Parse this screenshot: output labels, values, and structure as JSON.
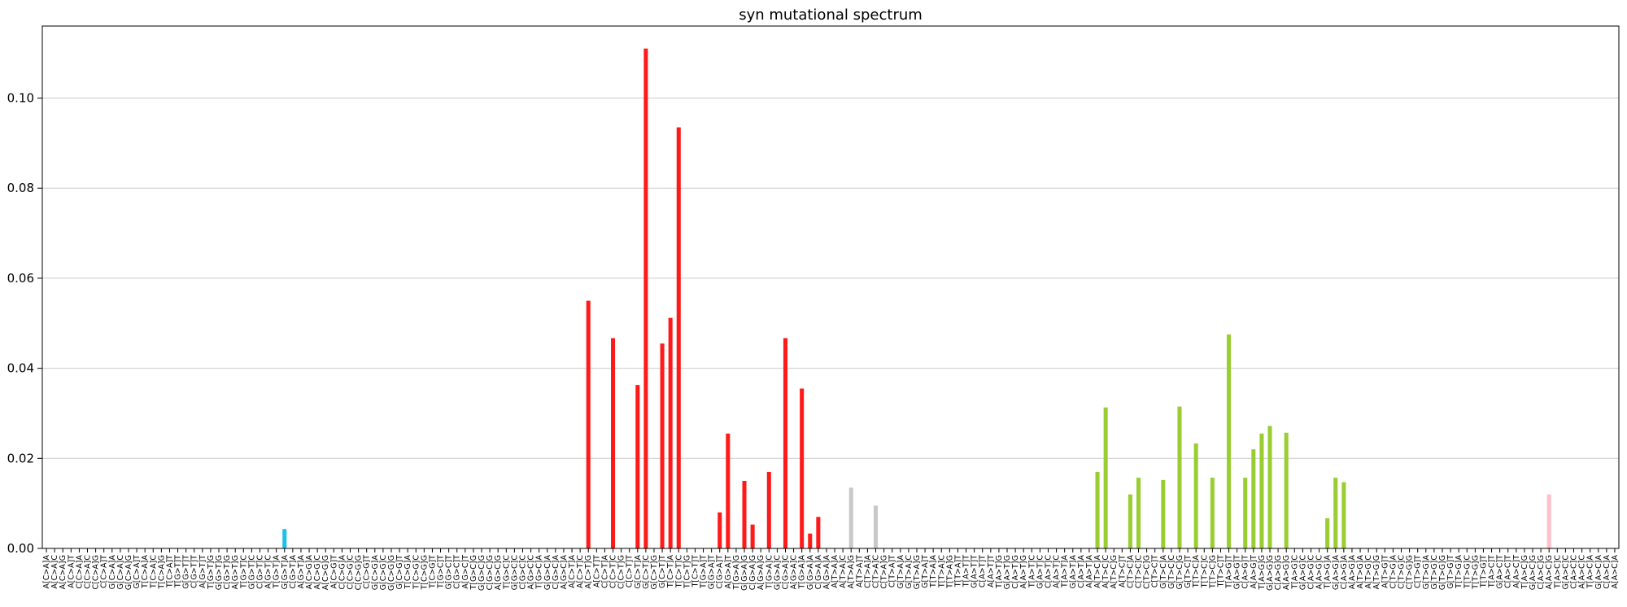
{
  "chart_data": {
    "type": "bar",
    "title": "syn mutational spectrum",
    "xlabel": "",
    "ylabel": "",
    "ylim": [
      0,
      0.116
    ],
    "yticks": [
      "0.00",
      "0.02",
      "0.04",
      "0.06",
      "0.08",
      "0.10"
    ],
    "grid": "horizontal",
    "categories": [
      "A[C>A]A",
      "A[C>A]C",
      "A[C>A]G",
      "A[C>A]T",
      "C[C>A]A",
      "C[C>A]C",
      "C[C>A]G",
      "C[C>A]T",
      "G[C>A]A",
      "G[C>A]C",
      "G[C>A]G",
      "G[C>A]T",
      "T[C>A]A",
      "T[C>A]C",
      "T[C>A]G",
      "T[C>A]T",
      "T[G>T]T",
      "G[G>T]T",
      "C[G>T]T",
      "A[G>T]T",
      "T[G>T]G",
      "G[G>T]G",
      "C[G>T]G",
      "A[G>T]G",
      "T[G>T]C",
      "G[G>T]C",
      "C[G>T]C",
      "A[G>T]C",
      "T[G>T]A",
      "G[G>T]A",
      "C[G>T]A",
      "A[G>T]A",
      "A[C>G]A",
      "A[C>G]C",
      "A[C>G]G",
      "A[C>G]T",
      "C[C>G]A",
      "C[C>G]C",
      "C[C>G]G",
      "C[C>G]T",
      "G[C>G]A",
      "G[C>G]C",
      "G[C>G]G",
      "G[C>G]T",
      "T[C>G]A",
      "T[C>G]C",
      "T[C>G]G",
      "T[C>G]T",
      "T[G>C]T",
      "G[G>C]T",
      "C[G>C]T",
      "A[G>C]T",
      "T[G>C]G",
      "G[G>C]G",
      "C[G>C]G",
      "A[G>C]G",
      "T[G>C]C",
      "G[G>C]C",
      "C[G>C]C",
      "A[G>C]C",
      "T[G>C]A",
      "G[G>C]A",
      "C[G>C]A",
      "A[G>C]A",
      "A[C>T]A",
      "A[C>T]C",
      "A[C>T]G",
      "A[C>T]T",
      "C[C>T]A",
      "C[C>T]C",
      "C[C>T]G",
      "C[C>T]T",
      "G[C>T]A",
      "G[C>T]C",
      "G[C>T]G",
      "G[C>T]T",
      "T[C>T]A",
      "T[C>T]C",
      "T[C>T]G",
      "T[C>T]T",
      "T[G>A]T",
      "G[G>A]T",
      "C[G>A]T",
      "A[G>A]T",
      "T[G>A]G",
      "G[G>A]G",
      "C[G>A]G",
      "A[G>A]G",
      "T[G>A]C",
      "G[G>A]C",
      "C[G>A]C",
      "A[G>A]C",
      "T[G>A]A",
      "G[G>A]A",
      "C[G>A]A",
      "A[G>A]A",
      "A[T>A]A",
      "A[T>A]C",
      "A[T>A]G",
      "A[T>A]T",
      "C[T>A]A",
      "C[T>A]C",
      "C[T>A]G",
      "C[T>A]T",
      "G[T>A]A",
      "G[T>A]C",
      "G[T>A]G",
      "G[T>A]T",
      "T[T>A]A",
      "T[T>A]C",
      "T[T>A]G",
      "T[T>A]T",
      "T[A>T]T",
      "G[A>T]T",
      "C[A>T]T",
      "A[A>T]T",
      "T[A>T]G",
      "G[A>T]G",
      "C[A>T]G",
      "A[A>T]G",
      "T[A>T]C",
      "G[A>T]C",
      "C[A>T]C",
      "A[A>T]C",
      "T[A>T]A",
      "G[A>T]A",
      "C[A>T]A",
      "A[A>T]A",
      "A[T>C]A",
      "A[T>C]C",
      "A[T>C]G",
      "A[T>C]T",
      "C[T>C]A",
      "C[T>C]C",
      "C[T>C]G",
      "C[T>C]T",
      "G[T>C]A",
      "G[T>C]C",
      "G[T>C]G",
      "G[T>C]T",
      "T[T>C]A",
      "T[T>C]C",
      "T[T>C]G",
      "T[T>C]T",
      "T[A>G]T",
      "G[A>G]T",
      "C[A>G]T",
      "A[A>G]T",
      "T[A>G]G",
      "G[A>G]G",
      "C[A>G]G",
      "A[A>G]G",
      "T[A>G]C",
      "G[A>G]C",
      "C[A>G]C",
      "A[A>G]C",
      "T[A>G]A",
      "G[A>G]A",
      "C[A>G]A",
      "A[A>G]A",
      "A[T>G]A",
      "A[T>G]C",
      "A[T>G]G",
      "A[T>G]T",
      "C[T>G]A",
      "C[T>G]C",
      "C[T>G]G",
      "C[T>G]T",
      "G[T>G]A",
      "G[T>G]C",
      "G[T>G]G",
      "G[T>G]T",
      "T[T>G]A",
      "T[T>G]C",
      "T[T>G]G",
      "T[T>G]T",
      "T[A>C]T",
      "G[A>C]T",
      "C[A>C]T",
      "A[A>C]T",
      "T[A>C]G",
      "G[A>C]G",
      "C[A>C]G",
      "A[A>C]G",
      "T[A>C]C",
      "G[A>C]C",
      "C[A>C]C",
      "A[A>C]C",
      "T[A>C]A",
      "G[A>C]A",
      "C[A>C]A",
      "A[A>C]A"
    ],
    "values": [
      0,
      0,
      0,
      0,
      0,
      0,
      0,
      0,
      0,
      0,
      0,
      0,
      0,
      0,
      0,
      0,
      0,
      0,
      0,
      0,
      0,
      0,
      0,
      0,
      0,
      0,
      0,
      0,
      0,
      0.0043,
      0,
      0,
      0,
      0,
      0,
      0,
      0,
      0,
      0,
      0,
      0,
      0,
      0,
      0,
      0,
      0,
      0,
      0,
      0,
      0,
      0,
      0,
      0,
      0,
      0,
      0,
      0,
      0,
      0,
      0,
      0,
      0,
      0,
      0,
      0,
      0,
      0.055,
      0,
      0,
      0.0467,
      0,
      0,
      0.0363,
      0.111,
      0,
      0.0455,
      0.0512,
      0.0935,
      0,
      0,
      0,
      0,
      0.008,
      0.0255,
      0,
      0.015,
      0.0053,
      0,
      0.017,
      0,
      0.0467,
      0,
      0.0355,
      0.0033,
      0.007,
      0,
      0,
      0,
      0.0135,
      0,
      0,
      0.0095,
      0,
      0,
      0,
      0,
      0,
      0,
      0,
      0,
      0,
      0,
      0,
      0,
      0,
      0,
      0,
      0,
      0,
      0,
      0,
      0,
      0,
      0,
      0,
      0,
      0,
      0,
      0.017,
      0.0313,
      0,
      0,
      0.012,
      0.0157,
      0,
      0,
      0.0152,
      0,
      0.0315,
      0,
      0.0233,
      0,
      0.0157,
      0,
      0.0475,
      0,
      0.0157,
      0.022,
      0.0255,
      0.0272,
      0,
      0.0257,
      0,
      0,
      0,
      0,
      0.0067,
      0.0157,
      0.0147,
      0,
      0,
      0,
      0,
      0,
      0,
      0,
      0,
      0,
      0,
      0,
      0,
      0,
      0,
      0,
      0,
      0,
      0,
      0,
      0,
      0,
      0,
      0,
      0,
      0.012,
      0,
      0,
      0,
      0,
      0,
      0,
      0,
      0
    ],
    "group_colors": [
      "#1ebff0",
      "#1ebff0",
      "#050708",
      "#050708",
      "#e62725",
      "#e62725",
      "#cbcacb",
      "#cbcacb",
      "#a1ce63",
      "#a1ce63",
      "#edc8c5",
      "#edc8c5"
    ],
    "bar_colors": {
      "C>A": "#1ebff0",
      "G>T": "#1ebff0",
      "C>G": "#050708",
      "G>C": "#050708",
      "C>T": "#ff1a1a",
      "G>A": "#ff1a1a",
      "T>A": "#c8c8c8",
      "A>T": "#c8c8c8",
      "T>C": "#9acd32",
      "A>G": "#9acd32",
      "T>G": "#ffc0cb",
      "A>C": "#ffc0cb"
    }
  }
}
